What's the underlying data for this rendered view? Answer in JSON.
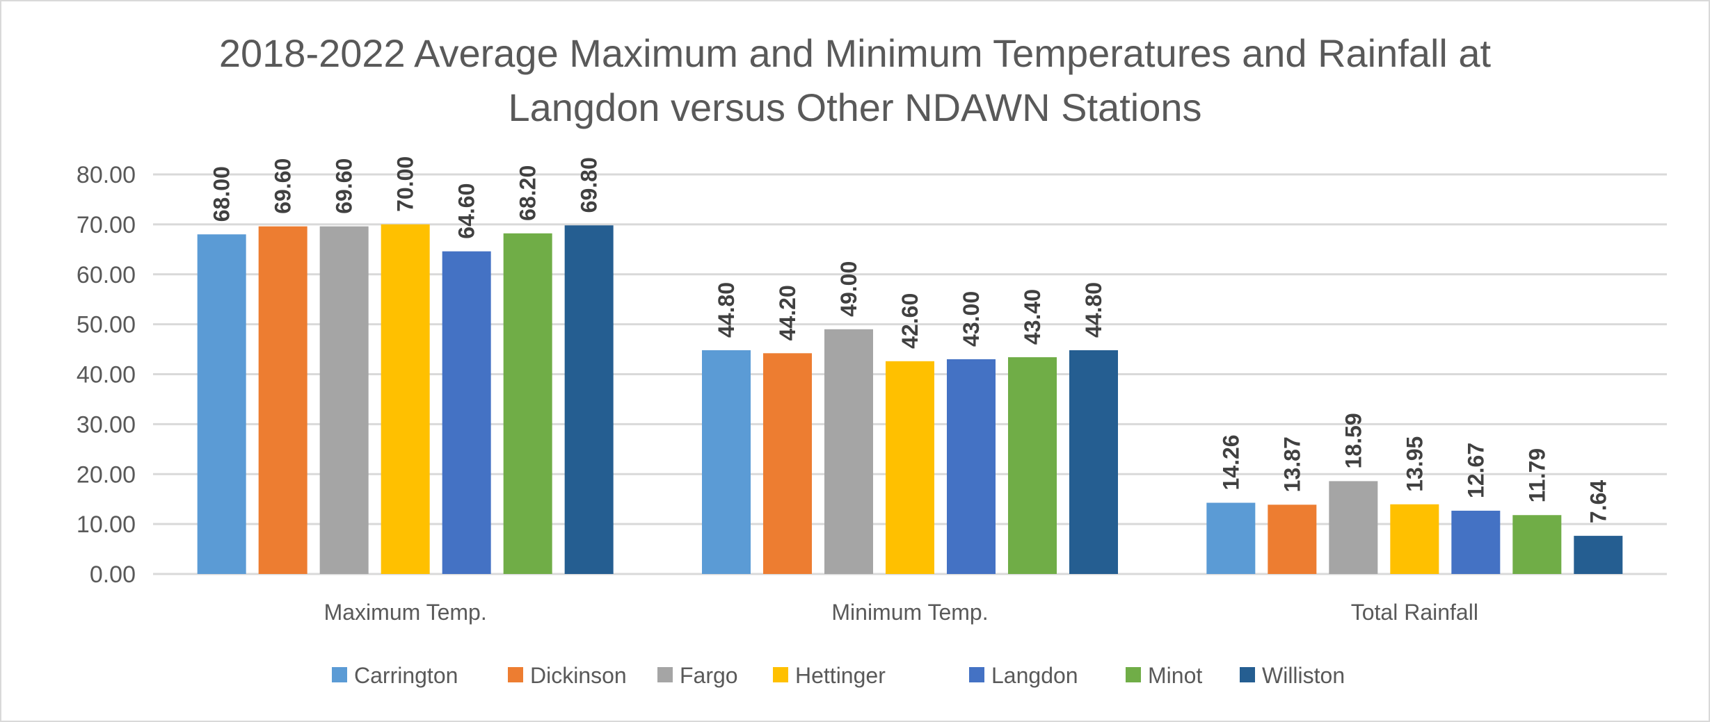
{
  "chart_data": {
    "type": "bar",
    "title": "2018-2022 Average Maximum and Minimum Temperatures and Rainfall at Langdon versus Other NDAWN Stations",
    "title_lines": [
      "2018-2022 Average Maximum and Minimum Temperatures and Rainfall at",
      "Langdon versus Other NDAWN Stations"
    ],
    "xlabel": "",
    "ylabel": "",
    "ylim": [
      0,
      80
    ],
    "yticks": [
      "0.00",
      "10.00",
      "20.00",
      "30.00",
      "40.00",
      "50.00",
      "60.00",
      "70.00",
      "80.00"
    ],
    "grid": true,
    "legend_position": "bottom",
    "categories": [
      "Maximum Temp.",
      "Minimum Temp.",
      "Total Rainfall"
    ],
    "series": [
      {
        "name": "Carrington",
        "color": "#5B9BD5",
        "values": [
          68.0,
          44.8,
          14.26
        ],
        "labels": [
          "68.00",
          "44.80",
          "14.26"
        ]
      },
      {
        "name": "Dickinson",
        "color": "#ED7D31",
        "values": [
          69.6,
          44.2,
          13.87
        ],
        "labels": [
          "69.60",
          "44.20",
          "13.87"
        ]
      },
      {
        "name": "Fargo",
        "color": "#A5A5A5",
        "values": [
          69.6,
          49.0,
          18.59
        ],
        "labels": [
          "69.60",
          "49.00",
          "18.59"
        ]
      },
      {
        "name": "Hettinger",
        "color": "#FFC000",
        "values": [
          70.0,
          42.6,
          13.95
        ],
        "labels": [
          "70.00",
          "42.60",
          "13.95"
        ]
      },
      {
        "name": "Langdon",
        "color": "#4472C4",
        "values": [
          64.6,
          43.0,
          12.67
        ],
        "labels": [
          "64.60",
          "43.00",
          "12.67"
        ]
      },
      {
        "name": "Minot",
        "color": "#70AD47",
        "values": [
          68.2,
          43.4,
          11.79
        ],
        "labels": [
          "68.20",
          "43.40",
          "11.79"
        ]
      },
      {
        "name": "Williston",
        "color": "#255E91",
        "values": [
          69.8,
          44.8,
          7.64
        ],
        "labels": [
          "69.80",
          "44.80",
          "7.64"
        ]
      }
    ]
  }
}
